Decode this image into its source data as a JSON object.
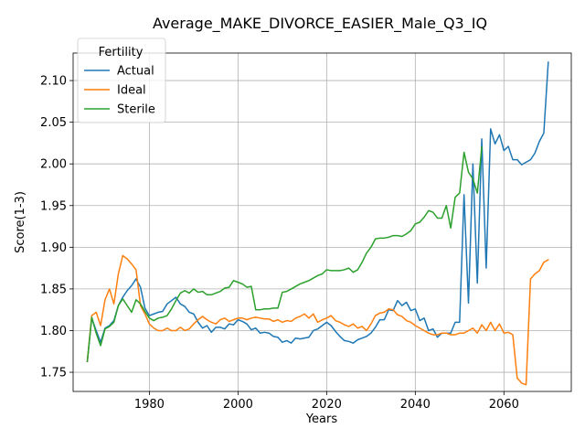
{
  "chart_data": {
    "type": "line",
    "title": "Average_MAKE_DIVORCE_EASIER_Male_Q3_IQ",
    "xlabel": "Years",
    "ylabel": "Score(1-3)",
    "xlim": [
      1962.8,
      2075.2
    ],
    "ylim": [
      1.727,
      2.133
    ],
    "xticks": [
      1980,
      2000,
      2020,
      2040,
      2060
    ],
    "yticks": [
      1.75,
      1.8,
      1.85,
      1.9,
      1.95,
      2.0,
      2.05,
      2.1
    ],
    "grid": true,
    "legend": {
      "title": "Fertility",
      "position": "top-left"
    },
    "series": [
      {
        "name": "Actual",
        "color": "#1f77b4",
        "x": [
          1966,
          1967,
          1968,
          1969,
          1970,
          1971,
          1972,
          1973,
          1974,
          1975,
          1976,
          1977,
          1978,
          1979,
          1980,
          1981,
          1982,
          1983,
          1984,
          1985,
          1986,
          1987,
          1988,
          1989,
          1990,
          1991,
          1992,
          1993,
          1994,
          1995,
          1996,
          1997,
          1998,
          1999,
          2000,
          2001,
          2002,
          2003,
          2004,
          2005,
          2006,
          2007,
          2008,
          2009,
          2010,
          2011,
          2012,
          2013,
          2014,
          2015,
          2016,
          2017,
          2018,
          2019,
          2020,
          2021,
          2022,
          2023,
          2024,
          2025,
          2026,
          2027,
          2028,
          2029,
          2030,
          2031,
          2032,
          2033,
          2034,
          2035,
          2036,
          2037,
          2038,
          2039,
          2040,
          2041,
          2042,
          2043,
          2044,
          2045,
          2046,
          2047,
          2048,
          2049,
          2050,
          2051,
          2052,
          2053,
          2054,
          2055,
          2056,
          2057,
          2058,
          2059,
          2060,
          2061,
          2062,
          2063,
          2064,
          2065,
          2066,
          2067,
          2068,
          2069,
          2070
        ],
        "y": [
          1.763,
          1.815,
          1.8,
          1.786,
          1.803,
          1.806,
          1.812,
          1.83,
          1.84,
          1.848,
          1.854,
          1.862,
          1.852,
          1.827,
          1.818,
          1.82,
          1.822,
          1.823,
          1.832,
          1.836,
          1.84,
          1.832,
          1.829,
          1.822,
          1.82,
          1.81,
          1.803,
          1.806,
          1.798,
          1.804,
          1.804,
          1.802,
          1.808,
          1.807,
          1.813,
          1.811,
          1.808,
          1.801,
          1.803,
          1.797,
          1.798,
          1.797,
          1.793,
          1.792,
          1.786,
          1.788,
          1.785,
          1.791,
          1.79,
          1.791,
          1.792,
          1.8,
          1.802,
          1.806,
          1.81,
          1.806,
          1.799,
          1.793,
          1.788,
          1.787,
          1.785,
          1.789,
          1.791,
          1.793,
          1.797,
          1.804,
          1.813,
          1.813,
          1.825,
          1.824,
          1.836,
          1.83,
          1.834,
          1.824,
          1.826,
          1.812,
          1.815,
          1.8,
          1.802,
          1.792,
          1.797,
          1.797,
          1.797,
          1.81,
          1.81,
          1.963,
          1.833,
          2.0,
          1.857,
          2.03,
          1.875,
          2.042,
          2.024,
          2.035,
          2.016,
          2.021,
          2.005,
          2.005,
          1.999,
          2.002,
          2.005,
          2.013,
          2.027,
          2.037,
          2.122
        ]
      },
      {
        "name": "Ideal",
        "color": "#ff7f0e",
        "x": [
          1966,
          1967,
          1968,
          1969,
          1970,
          1971,
          1972,
          1973,
          1974,
          1975,
          1976,
          1977,
          1978,
          1979,
          1980,
          1981,
          1982,
          1983,
          1984,
          1985,
          1986,
          1987,
          1988,
          1989,
          1990,
          1991,
          1992,
          1993,
          1994,
          1995,
          1996,
          1997,
          1998,
          1999,
          2000,
          2001,
          2002,
          2003,
          2004,
          2005,
          2006,
          2007,
          2008,
          2009,
          2010,
          2011,
          2012,
          2013,
          2014,
          2015,
          2016,
          2017,
          2018,
          2019,
          2020,
          2021,
          2022,
          2023,
          2024,
          2025,
          2026,
          2027,
          2028,
          2029,
          2030,
          2031,
          2032,
          2033,
          2034,
          2035,
          2036,
          2037,
          2038,
          2039,
          2040,
          2041,
          2042,
          2043,
          2044,
          2045,
          2046,
          2047,
          2048,
          2049,
          2050,
          2051,
          2052,
          2053,
          2054,
          2055,
          2056,
          2057,
          2058,
          2059,
          2060,
          2061,
          2062,
          2063,
          2064,
          2065,
          2066,
          2067,
          2068,
          2069,
          2070
        ],
        "y": [
          1.763,
          1.818,
          1.822,
          1.806,
          1.837,
          1.85,
          1.832,
          1.868,
          1.89,
          1.886,
          1.88,
          1.873,
          1.83,
          1.82,
          1.808,
          1.803,
          1.8,
          1.8,
          1.803,
          1.8,
          1.8,
          1.804,
          1.8,
          1.802,
          1.808,
          1.813,
          1.817,
          1.813,
          1.81,
          1.808,
          1.813,
          1.815,
          1.811,
          1.813,
          1.815,
          1.815,
          1.813,
          1.815,
          1.816,
          1.815,
          1.814,
          1.814,
          1.811,
          1.813,
          1.81,
          1.812,
          1.811,
          1.815,
          1.817,
          1.82,
          1.815,
          1.82,
          1.81,
          1.813,
          1.815,
          1.818,
          1.812,
          1.81,
          1.807,
          1.805,
          1.808,
          1.803,
          1.805,
          1.8,
          1.808,
          1.818,
          1.821,
          1.822,
          1.826,
          1.825,
          1.819,
          1.817,
          1.812,
          1.81,
          1.806,
          1.803,
          1.8,
          1.797,
          1.795,
          1.795,
          1.797,
          1.797,
          1.795,
          1.795,
          1.797,
          1.797,
          1.8,
          1.803,
          1.797,
          1.807,
          1.8,
          1.81,
          1.8,
          1.808,
          1.797,
          1.798,
          1.795,
          1.743,
          1.737,
          1.735,
          1.862,
          1.868,
          1.872,
          1.882,
          1.885
        ]
      },
      {
        "name": "Sterile",
        "color": "#2ca02c",
        "x": [
          1966,
          1967,
          1968,
          1969,
          1970,
          1971,
          1972,
          1973,
          1974,
          1975,
          1976,
          1977,
          1978,
          1979,
          1980,
          1981,
          1982,
          1983,
          1984,
          1985,
          1986,
          1987,
          1988,
          1989,
          1990,
          1991,
          1992,
          1993,
          1994,
          1995,
          1996,
          1997,
          1998,
          1999,
          2000,
          2001,
          2002,
          2003,
          2004,
          2005,
          2006,
          2007,
          2008,
          2009,
          2010,
          2011,
          2012,
          2013,
          2014,
          2015,
          2016,
          2017,
          2018,
          2019,
          2020,
          2021,
          2022,
          2023,
          2024,
          2025,
          2026,
          2027,
          2028,
          2029,
          2030,
          2031,
          2032,
          2033,
          2034,
          2035,
          2036,
          2037,
          2038,
          2039,
          2040,
          2041,
          2042,
          2043,
          2044,
          2045,
          2046,
          2047,
          2048,
          2049,
          2050,
          2051,
          2052,
          2053,
          2054,
          2055
        ],
        "y": [
          1.763,
          1.816,
          1.797,
          1.782,
          1.802,
          1.805,
          1.81,
          1.83,
          1.838,
          1.83,
          1.822,
          1.837,
          1.832,
          1.823,
          1.815,
          1.812,
          1.815,
          1.816,
          1.818,
          1.826,
          1.836,
          1.845,
          1.848,
          1.845,
          1.85,
          1.846,
          1.847,
          1.843,
          1.843,
          1.845,
          1.847,
          1.851,
          1.852,
          1.86,
          1.858,
          1.856,
          1.852,
          1.853,
          1.825,
          1.825,
          1.826,
          1.826,
          1.827,
          1.827,
          1.846,
          1.847,
          1.85,
          1.853,
          1.856,
          1.858,
          1.86,
          1.863,
          1.866,
          1.868,
          1.873,
          1.872,
          1.872,
          1.872,
          1.873,
          1.875,
          1.87,
          1.873,
          1.882,
          1.893,
          1.9,
          1.91,
          1.911,
          1.911,
          1.912,
          1.914,
          1.914,
          1.913,
          1.916,
          1.92,
          1.928,
          1.93,
          1.936,
          1.944,
          1.942,
          1.935,
          1.935,
          1.95,
          1.923,
          1.96,
          1.965,
          2.014,
          1.99,
          1.982,
          1.965,
          2.02
        ]
      }
    ]
  }
}
